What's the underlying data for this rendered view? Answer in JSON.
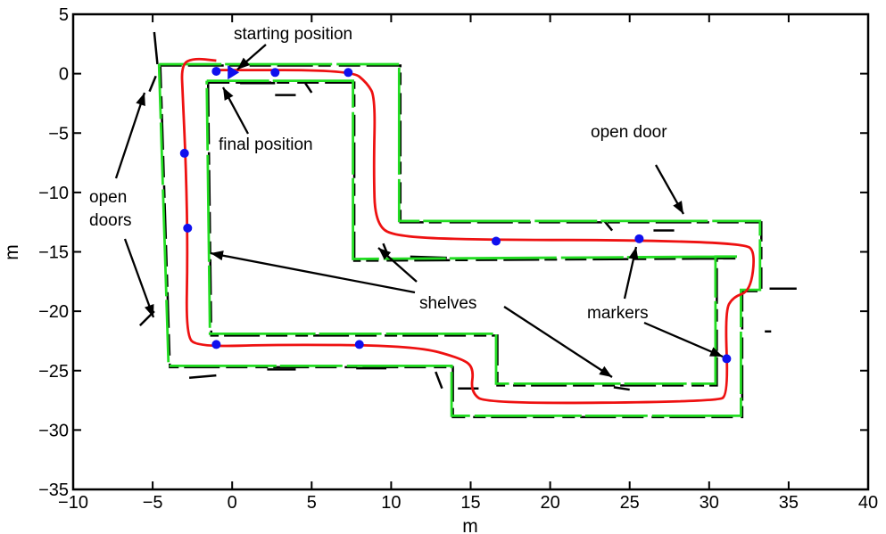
{
  "chart_data": {
    "type": "line",
    "xlabel": "m",
    "ylabel": "m",
    "xlim": [
      -10,
      40
    ],
    "ylim": [
      -35,
      5
    ],
    "xticks": [
      -10,
      -5,
      0,
      5,
      10,
      15,
      20,
      25,
      30,
      35,
      40
    ],
    "yticks": [
      5,
      0,
      -5,
      -10,
      -15,
      -20,
      -25,
      -30,
      -35
    ],
    "tick_labels_x": [
      "−10",
      "−5",
      "0",
      "5",
      "10",
      "15",
      "20",
      "25",
      "30",
      "35",
      "40"
    ],
    "tick_labels_y": [
      "5",
      "0",
      "−5",
      "−10",
      "−15",
      "−20",
      "−25",
      "−30",
      "−35"
    ],
    "grid": false,
    "colors": {
      "map": "#22dd22",
      "scan": "#000000",
      "trajectory": "#ee1111",
      "markers": "#1010ee"
    },
    "series": [
      {
        "key": "map",
        "points": [
          [
            -4.6,
            0.8
          ],
          [
            10.5,
            0.8
          ],
          [
            10.5,
            -12.4
          ],
          [
            33.2,
            -12.4
          ],
          [
            33.2,
            -18.2
          ],
          [
            32,
            -18.2
          ],
          [
            32,
            -28.8
          ],
          [
            13.8,
            -28.8
          ],
          [
            13.8,
            -24.6
          ],
          [
            -4,
            -24.6
          ],
          [
            -4.6,
            0.8
          ]
        ]
      },
      {
        "key": "map-inner",
        "points": [
          [
            -1.6,
            -0.6
          ],
          [
            7.6,
            -0.6
          ],
          [
            7.6,
            -15.6
          ],
          [
            31.8,
            -15.4
          ],
          [
            30.4,
            -15.4
          ],
          [
            30.4,
            -26.1
          ],
          [
            16.6,
            -26.1
          ],
          [
            16.6,
            -21.9
          ],
          [
            -1.4,
            -21.9
          ],
          [
            -1.6,
            -0.6
          ]
        ]
      },
      {
        "key": "trajectory",
        "points": [
          [
            -1,
            0.3
          ],
          [
            7.5,
            0.3
          ],
          [
            8.5,
            -0.8
          ],
          [
            9,
            -2
          ],
          [
            8.9,
            -8
          ],
          [
            9,
            -12.8
          ],
          [
            10.5,
            -13.8
          ],
          [
            17,
            -14
          ],
          [
            25,
            -14
          ],
          [
            32.2,
            -14.3
          ],
          [
            32.9,
            -15
          ],
          [
            32.6,
            -18.3
          ],
          [
            31.5,
            -18.8
          ],
          [
            31,
            -20
          ],
          [
            31.2,
            -27
          ],
          [
            30.5,
            -27.6
          ],
          [
            16,
            -27.8
          ],
          [
            15,
            -26.8
          ],
          [
            15.2,
            -24.8
          ],
          [
            14.5,
            -24
          ],
          [
            11.5,
            -22.9
          ],
          [
            3,
            -22.8
          ],
          [
            -2.2,
            -23
          ],
          [
            -2.9,
            -22
          ],
          [
            -2.8,
            -15
          ],
          [
            -2.9,
            -8
          ],
          [
            -3.1,
            -2
          ],
          [
            -3.2,
            0.8
          ],
          [
            -2.4,
            1.3
          ],
          [
            -1,
            1.1
          ]
        ]
      }
    ],
    "markers": [
      {
        "x": -1,
        "y": 0.2
      },
      {
        "x": 2.7,
        "y": 0.1
      },
      {
        "x": 7.3,
        "y": 0.1
      },
      {
        "x": -3,
        "y": -6.7
      },
      {
        "x": -2.8,
        "y": -13
      },
      {
        "x": 16.6,
        "y": -14.1
      },
      {
        "x": 25.6,
        "y": -13.9
      },
      {
        "x": 31.1,
        "y": -24
      },
      {
        "x": -1,
        "y": -22.8
      },
      {
        "x": 8,
        "y": -22.8
      }
    ],
    "start_position": {
      "x": 0,
      "y": 0.1
    },
    "annotations": [
      {
        "key": "starting",
        "text": "starting position"
      },
      {
        "key": "final",
        "text": "final position"
      },
      {
        "key": "open_doors_1",
        "text": "open"
      },
      {
        "key": "open_doors_2",
        "text": "doors"
      },
      {
        "key": "open_door",
        "text": "open door"
      },
      {
        "key": "shelves",
        "text": "shelves"
      },
      {
        "key": "markers",
        "text": "markers"
      }
    ]
  }
}
